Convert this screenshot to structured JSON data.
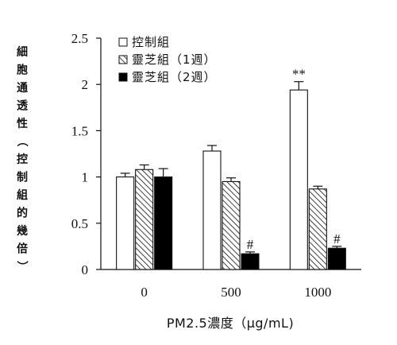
{
  "chart_data": {
    "type": "bar",
    "title": "",
    "xlabel": "PM2.5濃度（μg/mL)",
    "ylabel": "細胞通透性（控制組的幾倍）",
    "ylim": [
      0,
      2.5
    ],
    "yticks": [
      "0",
      "0.5",
      "1",
      "1.5",
      "2",
      "2.5"
    ],
    "categories": [
      "0",
      "500",
      "1000"
    ],
    "series": [
      {
        "name": "控制組",
        "pattern": "open",
        "values": [
          1.0,
          1.28,
          1.94
        ],
        "errors": [
          0.04,
          0.06,
          0.09
        ]
      },
      {
        "name": "靈芝組（1週）",
        "pattern": "hatched",
        "values": [
          1.08,
          0.95,
          0.87
        ],
        "errors": [
          0.05,
          0.04,
          0.03
        ]
      },
      {
        "name": "靈芝組（2週）",
        "pattern": "solid",
        "values": [
          1.0,
          0.17,
          0.23
        ],
        "errors": [
          0.09,
          0.02,
          0.02
        ]
      }
    ],
    "annotations": [
      {
        "text": "**",
        "category": "1000",
        "series": "控制組"
      },
      {
        "text": "#",
        "category": "500",
        "series": "靈芝組（2週）"
      },
      {
        "text": "#",
        "category": "1000",
        "series": "靈芝組（2週）"
      }
    ],
    "legend_position": "top-left",
    "grid": false,
    "colors": {
      "axis": "#111111",
      "solid": "#000000",
      "open": "#ffffff"
    }
  }
}
